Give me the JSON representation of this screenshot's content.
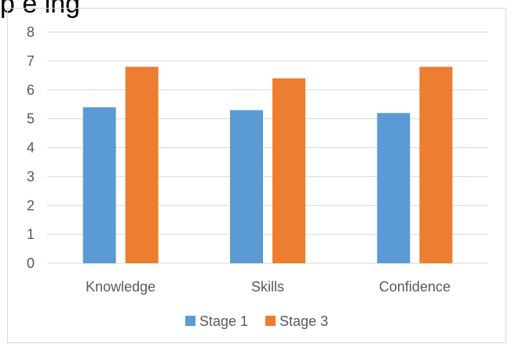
{
  "header": {
    "title_fragment": "p       e   ing"
  },
  "chart_data": {
    "type": "bar",
    "categories": [
      "Knowledge",
      "Skills",
      "Confidence"
    ],
    "series": [
      {
        "name": "Stage 1",
        "values": [
          5.4,
          5.3,
          5.2
        ],
        "color": "#5b9bd5"
      },
      {
        "name": "Stage 3",
        "values": [
          6.8,
          6.4,
          6.8
        ],
        "color": "#ed7d31"
      }
    ],
    "ylim": [
      0,
      8
    ],
    "yticks": [
      "0",
      "1",
      "2",
      "3",
      "4",
      "5",
      "6",
      "7",
      "8"
    ],
    "grid": true,
    "legend_position": "bottom"
  }
}
